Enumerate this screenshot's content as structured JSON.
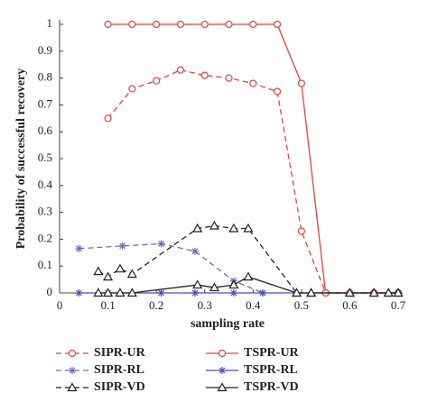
{
  "chart_data": {
    "type": "line",
    "xlabel": "sampling rate",
    "ylabel": "Probability of successful recovery",
    "xlim": [
      0,
      0.7
    ],
    "ylim": [
      0,
      1
    ],
    "xticks": [
      0,
      0.1,
      0.2,
      0.3,
      0.4,
      0.5,
      0.6,
      0.7
    ],
    "yticks": [
      0,
      0.1,
      0.2,
      0.3,
      0.4,
      0.5,
      0.6,
      0.7,
      0.8,
      0.9,
      1
    ],
    "series": [
      {
        "name": "SIPR-UR",
        "color": "#e8413a",
        "dash": true,
        "marker": "circle",
        "x": [
          0.1,
          0.15,
          0.2,
          0.25,
          0.3,
          0.35,
          0.4,
          0.45,
          0.5,
          0.55,
          0.6,
          0.65,
          0.7
        ],
        "values": [
          0.65,
          0.76,
          0.79,
          0.83,
          0.81,
          0.8,
          0.78,
          0.75,
          0.23,
          0,
          0,
          0,
          0
        ]
      },
      {
        "name": "TSPR-UR",
        "color": "#e8413a",
        "dash": false,
        "marker": "circle",
        "x": [
          0.1,
          0.15,
          0.2,
          0.25,
          0.3,
          0.35,
          0.4,
          0.45,
          0.5,
          0.55,
          0.6,
          0.65,
          0.7
        ],
        "values": [
          1,
          1,
          1,
          1,
          1,
          1,
          1,
          1,
          0.78,
          0,
          0,
          0,
          0
        ]
      },
      {
        "name": "SIPR-RL",
        "color": "#6a6cc8",
        "dash": true,
        "marker": "star",
        "x": [
          0.04,
          0.13,
          0.21,
          0.28,
          0.36,
          0.42
        ],
        "values": [
          0.165,
          0.175,
          0.183,
          0.155,
          0.045,
          0
        ]
      },
      {
        "name": "TSPR-RL",
        "color": "#4a4cc0",
        "dash": false,
        "marker": "star",
        "x": [
          0.04,
          0.1,
          0.21,
          0.28,
          0.36,
          0.42,
          0.7
        ],
        "values": [
          0,
          0,
          0,
          0,
          0,
          0,
          0
        ]
      },
      {
        "name": "SIPR-VD",
        "color": "#222222",
        "dash": true,
        "marker": "triangle",
        "x": [
          0.08,
          0.1,
          0.125,
          0.15,
          0.285,
          0.32,
          0.36,
          0.39,
          0.49,
          0.52,
          0.6,
          0.65,
          0.68,
          0.7
        ],
        "values": [
          0.08,
          0.06,
          0.09,
          0.07,
          0.24,
          0.25,
          0.24,
          0.24,
          0,
          0,
          0,
          0,
          0,
          0
        ]
      },
      {
        "name": "TSPR-VD",
        "color": "#222222",
        "dash": false,
        "marker": "triangle",
        "x": [
          0.08,
          0.1,
          0.125,
          0.15,
          0.285,
          0.32,
          0.36,
          0.39,
          0.49,
          0.52,
          0.6,
          0.65,
          0.68,
          0.7
        ],
        "values": [
          0,
          0,
          0,
          0,
          0.03,
          0.02,
          0.03,
          0.06,
          0,
          0,
          0,
          0,
          0,
          0
        ]
      }
    ]
  }
}
